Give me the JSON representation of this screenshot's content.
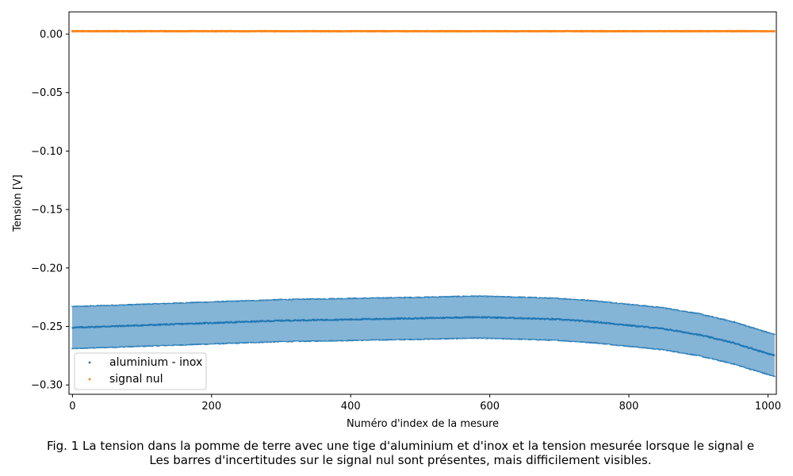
{
  "chart_data": {
    "type": "scatter",
    "xlabel": "Numéro d'index de la mesure",
    "ylabel": "Tension [V]",
    "xlim": [
      -5,
      1012
    ],
    "ylim": [
      -0.308,
      0.019
    ],
    "x_ticks": [
      0,
      200,
      400,
      600,
      800,
      1000
    ],
    "y_ticks": [
      0.0,
      -0.05,
      -0.1,
      -0.15,
      -0.2,
      -0.25,
      -0.3
    ],
    "y_tick_labels": [
      "0.00",
      "−0.05",
      "−0.10",
      "−0.15",
      "−0.20",
      "−0.25",
      "−0.30"
    ],
    "grid": false,
    "legend_position": "lower-left",
    "n_points": 1010,
    "series": [
      {
        "name": "aluminium - inox",
        "color": "#1f77b4",
        "errorbars": true,
        "x": [
          0,
          100,
          200,
          300,
          400,
          500,
          580,
          650,
          700,
          750,
          800,
          850,
          900,
          950,
          1010
        ],
        "y": [
          -0.251,
          -0.249,
          -0.247,
          -0.245,
          -0.244,
          -0.243,
          -0.242,
          -0.243,
          -0.244,
          -0.246,
          -0.249,
          -0.252,
          -0.257,
          -0.264,
          -0.275
        ],
        "error": [
          0.018,
          0.018,
          0.018,
          0.018,
          0.018,
          0.018,
          0.018,
          0.018,
          0.018,
          0.018,
          0.018,
          0.018,
          0.018,
          0.018,
          0.018
        ]
      },
      {
        "name": "signal nul",
        "color": "#ff7f0e",
        "errorbars": true,
        "x": [
          0,
          1010
        ],
        "y": [
          0.0025,
          0.0025
        ],
        "error": [
          0.0005,
          0.0005
        ]
      }
    ]
  },
  "caption": {
    "line1": "Fig. 1 La tension dans la pomme de terre avec une tige d'aluminium et d'inox et la tension mesurée lorsque le signal e",
    "line2": "Les barres d'incertitudes sur le signal nul sont présentes, mais difficilement visibles."
  }
}
